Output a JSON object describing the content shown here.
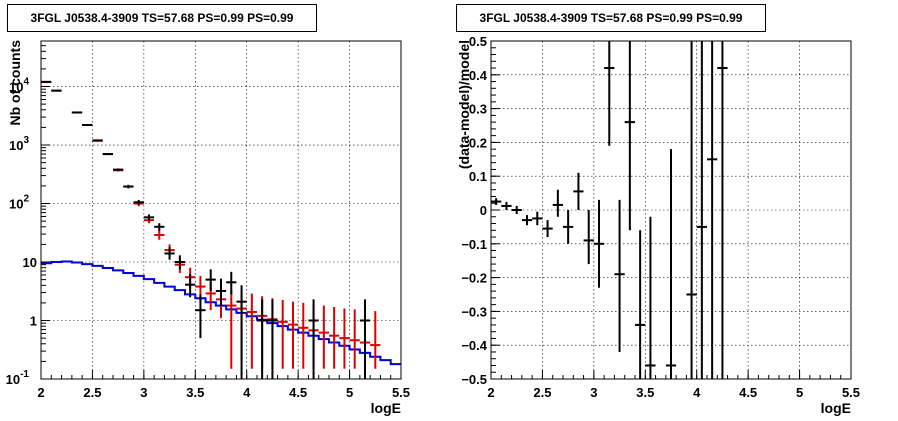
{
  "chart_data": [
    {
      "type": "scatter",
      "title": "3FGL J0538.4-3909 TS=57.68 PS=0.99 PS=0.99",
      "xlabel": "logE",
      "ylabel": "Nb of counts",
      "xlim": [
        2,
        5.5
      ],
      "ylim": [
        0.1,
        60000
      ],
      "yscale": "log",
      "grid": true,
      "x_ticks": [
        "2",
        "2.5",
        "3",
        "3.5",
        "4",
        "4.5",
        "5",
        "5.5"
      ],
      "y_ticks": [
        {
          "value": 0.1,
          "label": "10",
          "exp": "-1"
        },
        {
          "value": 1,
          "label": "1",
          "exp": ""
        },
        {
          "value": 10,
          "label": "10",
          "exp": ""
        },
        {
          "value": 100,
          "label": "10",
          "exp": "2"
        },
        {
          "value": 1000,
          "label": "10",
          "exp": "3"
        },
        {
          "value": 10000,
          "label": "10",
          "exp": "4"
        }
      ],
      "series": [
        {
          "role": "data",
          "color": "#000000",
          "points": [
            {
              "x": 2.05,
              "y": 12000,
              "lo": 11900,
              "hi": 12100
            },
            {
              "x": 2.15,
              "y": 8500,
              "lo": 8400,
              "hi": 8600
            },
            {
              "x": 2.35,
              "y": 3600,
              "lo": 3550,
              "hi": 3650
            },
            {
              "x": 2.45,
              "y": 2200,
              "lo": 2160,
              "hi": 2240
            },
            {
              "x": 2.55,
              "y": 1200,
              "lo": 1170,
              "hi": 1230
            },
            {
              "x": 2.65,
              "y": 700,
              "lo": 675,
              "hi": 725
            },
            {
              "x": 2.75,
              "y": 380,
              "lo": 362,
              "hi": 398
            },
            {
              "x": 2.85,
              "y": 195,
              "lo": 182,
              "hi": 208
            },
            {
              "x": 2.95,
              "y": 105,
              "lo": 95,
              "hi": 115
            },
            {
              "x": 3.05,
              "y": 58,
              "lo": 51,
              "hi": 65
            },
            {
              "x": 3.15,
              "y": 40,
              "lo": 34,
              "hi": 46
            },
            {
              "x": 3.25,
              "y": 14,
              "lo": 11,
              "hi": 18
            },
            {
              "x": 3.35,
              "y": 10,
              "lo": 7.5,
              "hi": 13
            },
            {
              "x": 3.45,
              "y": 4.1,
              "lo": 2.5,
              "hi": 6.2
            },
            {
              "x": 3.55,
              "y": 1.5,
              "lo": 0.5,
              "hi": 2.8
            },
            {
              "x": 3.65,
              "y": 5,
              "lo": 3.2,
              "hi": 7.5
            },
            {
              "x": 3.75,
              "y": 3.2,
              "lo": 1.8,
              "hi": 5.2
            },
            {
              "x": 3.85,
              "y": 4.5,
              "lo": 2.8,
              "hi": 6.8
            },
            {
              "x": 3.95,
              "y": 2.1,
              "lo": 0.1,
              "hi": 4
            },
            {
              "x": 4.15,
              "y": 1,
              "lo": 0.1,
              "hi": 2.3
            },
            {
              "x": 4.25,
              "y": 1,
              "lo": 0.1,
              "hi": 2.3
            },
            {
              "x": 4.65,
              "y": 1,
              "lo": 0.1,
              "hi": 2.3
            },
            {
              "x": 5.15,
              "y": 1,
              "lo": 0.1,
              "hi": 2.3
            }
          ]
        },
        {
          "role": "model",
          "color": "#dd0000",
          "points": [
            {
              "x": 2.05,
              "y": 12000,
              "lo": 11900,
              "hi": 12100
            },
            {
              "x": 2.15,
              "y": 8500,
              "lo": 8400,
              "hi": 8600
            },
            {
              "x": 2.35,
              "y": 3600,
              "lo": 3550,
              "hi": 3650
            },
            {
              "x": 2.45,
              "y": 2200,
              "lo": 2160,
              "hi": 2240
            },
            {
              "x": 2.55,
              "y": 1180,
              "lo": 1150,
              "hi": 1210
            },
            {
              "x": 2.65,
              "y": 700,
              "lo": 675,
              "hi": 725
            },
            {
              "x": 2.75,
              "y": 370,
              "lo": 352,
              "hi": 388
            },
            {
              "x": 2.85,
              "y": 195,
              "lo": 182,
              "hi": 208
            },
            {
              "x": 2.95,
              "y": 100,
              "lo": 90,
              "hi": 110
            },
            {
              "x": 3.05,
              "y": 52,
              "lo": 46,
              "hi": 58
            },
            {
              "x": 3.15,
              "y": 29,
              "lo": 24,
              "hi": 34
            },
            {
              "x": 3.25,
              "y": 16,
              "lo": 12.5,
              "hi": 20
            },
            {
              "x": 3.35,
              "y": 9,
              "lo": 6.5,
              "hi": 12
            },
            {
              "x": 3.45,
              "y": 5.5,
              "lo": 3.5,
              "hi": 8
            },
            {
              "x": 3.55,
              "y": 3.8,
              "lo": 2.2,
              "hi": 5.8
            },
            {
              "x": 3.65,
              "y": 2.9,
              "lo": 1.5,
              "hi": 4.6
            },
            {
              "x": 3.75,
              "y": 2.3,
              "lo": 1.1,
              "hi": 3.9
            },
            {
              "x": 3.85,
              "y": 1.8,
              "lo": 0.15,
              "hi": 3.3
            },
            {
              "x": 3.95,
              "y": 1.6,
              "lo": 0.2,
              "hi": 3.2
            },
            {
              "x": 4.05,
              "y": 1.4,
              "lo": 0.15,
              "hi": 2.9
            },
            {
              "x": 4.15,
              "y": 1.2,
              "lo": 0.15,
              "hi": 2.6
            },
            {
              "x": 4.25,
              "y": 1.05,
              "lo": 0.15,
              "hi": 2.4
            },
            {
              "x": 4.35,
              "y": 0.95,
              "lo": 0.15,
              "hi": 2.25
            },
            {
              "x": 4.45,
              "y": 0.85,
              "lo": 0.15,
              "hi": 2.1
            },
            {
              "x": 4.55,
              "y": 0.75,
              "lo": 0.15,
              "hi": 2.0
            },
            {
              "x": 4.65,
              "y": 0.68,
              "lo": 0.15,
              "hi": 1.9
            },
            {
              "x": 4.75,
              "y": 0.62,
              "lo": 0.15,
              "hi": 1.8
            },
            {
              "x": 4.85,
              "y": 0.55,
              "lo": 0.15,
              "hi": 1.7
            },
            {
              "x": 4.95,
              "y": 0.5,
              "lo": 0.15,
              "hi": 1.6
            },
            {
              "x": 5.05,
              "y": 0.46,
              "lo": 0.15,
              "hi": 1.55
            },
            {
              "x": 5.15,
              "y": 0.42,
              "lo": 0.15,
              "hi": 1.5
            },
            {
              "x": 5.25,
              "y": 0.38,
              "lo": 0.15,
              "hi": 1.45
            }
          ]
        },
        {
          "role": "background",
          "color": "#0000dd",
          "bins": [
            {
              "x0": 2.0,
              "y": 9.5
            },
            {
              "x0": 2.1,
              "y": 10
            },
            {
              "x0": 2.2,
              "y": 10.2
            },
            {
              "x0": 2.3,
              "y": 9.8
            },
            {
              "x0": 2.4,
              "y": 9.2
            },
            {
              "x0": 2.5,
              "y": 8.6
            },
            {
              "x0": 2.6,
              "y": 7.9
            },
            {
              "x0": 2.7,
              "y": 7.2
            },
            {
              "x0": 2.8,
              "y": 6.5
            },
            {
              "x0": 2.9,
              "y": 5.8
            },
            {
              "x0": 3.0,
              "y": 5.1
            },
            {
              "x0": 3.1,
              "y": 4.4
            },
            {
              "x0": 3.2,
              "y": 3.8
            },
            {
              "x0": 3.3,
              "y": 3.3
            },
            {
              "x0": 3.4,
              "y": 2.8
            },
            {
              "x0": 3.5,
              "y": 2.4
            },
            {
              "x0": 3.6,
              "y": 2.05
            },
            {
              "x0": 3.7,
              "y": 1.8
            },
            {
              "x0": 3.8,
              "y": 1.55
            },
            {
              "x0": 3.9,
              "y": 1.35
            },
            {
              "x0": 4.0,
              "y": 1.18
            },
            {
              "x0": 4.1,
              "y": 1.03
            },
            {
              "x0": 4.2,
              "y": 0.9
            },
            {
              "x0": 4.3,
              "y": 0.8
            },
            {
              "x0": 4.4,
              "y": 0.7
            },
            {
              "x0": 4.5,
              "y": 0.62
            },
            {
              "x0": 4.6,
              "y": 0.55
            },
            {
              "x0": 4.7,
              "y": 0.48
            },
            {
              "x0": 4.8,
              "y": 0.42
            },
            {
              "x0": 4.9,
              "y": 0.37
            },
            {
              "x0": 5.0,
              "y": 0.32
            },
            {
              "x0": 5.1,
              "y": 0.28
            },
            {
              "x0": 5.2,
              "y": 0.24
            },
            {
              "x0": 5.3,
              "y": 0.21
            },
            {
              "x0": 5.4,
              "y": 0.18
            }
          ]
        }
      ]
    },
    {
      "type": "scatter",
      "title": "3FGL J0538.4-3909 TS=57.68 PS=0.99 PS=0.99",
      "xlabel": "logE",
      "ylabel": "(data-model)/model",
      "xlim": [
        2,
        5.5
      ],
      "ylim": [
        -0.5,
        0.5
      ],
      "grid": true,
      "x_ticks": [
        "2",
        "2.5",
        "3",
        "3.5",
        "4",
        "4.5",
        "5",
        "5.5"
      ],
      "y_ticks": [
        "−0.5",
        "−0.4",
        "−0.3",
        "−0.2",
        "−0.1",
        "0",
        "0.1",
        "0.2",
        "0.3",
        "0.4",
        "0.5"
      ],
      "series": [
        {
          "role": "residuals",
          "color": "#000000",
          "points": [
            {
              "x": 2.05,
              "y": 0.025,
              "lo": 0.015,
              "hi": 0.035
            },
            {
              "x": 2.15,
              "y": 0.012,
              "lo": 0.0,
              "hi": 0.024
            },
            {
              "x": 2.25,
              "y": 0.0,
              "lo": -0.012,
              "hi": 0.012
            },
            {
              "x": 2.35,
              "y": -0.03,
              "lo": -0.045,
              "hi": -0.015
            },
            {
              "x": 2.45,
              "y": -0.025,
              "lo": -0.045,
              "hi": -0.005
            },
            {
              "x": 2.55,
              "y": -0.055,
              "lo": -0.08,
              "hi": -0.03
            },
            {
              "x": 2.65,
              "y": 0.015,
              "lo": -0.02,
              "hi": 0.06
            },
            {
              "x": 2.75,
              "y": -0.05,
              "lo": -0.1,
              "hi": 0.0
            },
            {
              "x": 2.85,
              "y": 0.055,
              "lo": 0.0,
              "hi": 0.11
            },
            {
              "x": 2.95,
              "y": -0.09,
              "lo": -0.16,
              "hi": 0.0
            },
            {
              "x": 3.05,
              "y": -0.1,
              "lo": -0.23,
              "hi": 0.03
            },
            {
              "x": 3.15,
              "y": 0.42,
              "lo": 0.19,
              "hi": 0.5
            },
            {
              "x": 3.25,
              "y": -0.19,
              "lo": -0.42,
              "hi": 0.03
            },
            {
              "x": 3.35,
              "y": 0.26,
              "lo": -0.06,
              "hi": 0.5
            },
            {
              "x": 3.45,
              "y": -0.34,
              "lo": -0.5,
              "hi": -0.06
            },
            {
              "x": 3.55,
              "y": -0.46,
              "lo": -0.5,
              "hi": -0.02
            },
            {
              "x": 3.75,
              "y": -0.46,
              "lo": -0.5,
              "hi": 0.18
            },
            {
              "x": 3.95,
              "y": -0.25,
              "lo": -0.5,
              "hi": 0.5
            },
            {
              "x": 4.05,
              "y": -0.05,
              "lo": -0.5,
              "hi": 0.5
            },
            {
              "x": 4.15,
              "y": 0.15,
              "lo": -0.5,
              "hi": 0.5
            },
            {
              "x": 4.25,
              "y": 0.42,
              "lo": -0.5,
              "hi": 0.5
            }
          ]
        }
      ]
    }
  ]
}
